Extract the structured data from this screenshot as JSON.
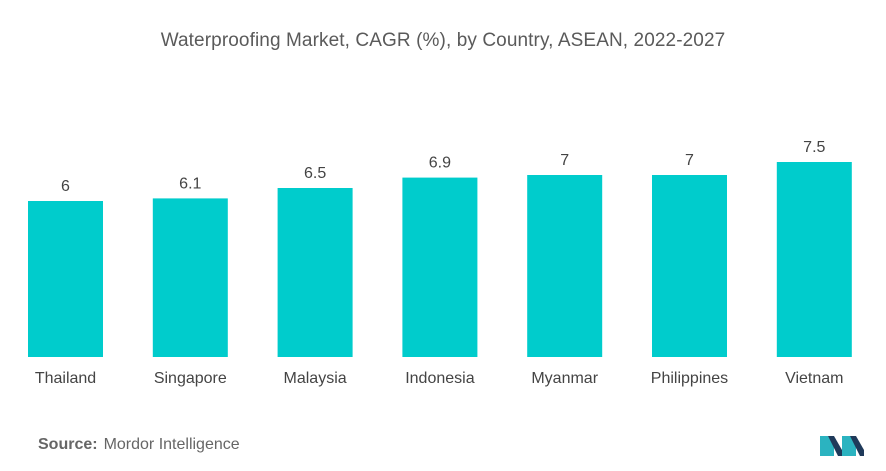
{
  "chart_data": {
    "type": "bar",
    "title": "Waterproofing Market, CAGR (%), by Country, ASEAN, 2022-2027",
    "categories": [
      "Thailand",
      "Singapore",
      "Malaysia",
      "Indonesia",
      "Myanmar",
      "Philippines",
      "Vietnam"
    ],
    "values": [
      6,
      6.1,
      6.5,
      6.9,
      7,
      7,
      7.5
    ],
    "data_labels": [
      "6",
      "6.1",
      "6.5",
      "6.9",
      "7",
      "7",
      "7.5"
    ],
    "xlabel": "",
    "ylabel": "",
    "ylim": [
      0,
      7.5
    ],
    "grid": false,
    "legend": "none",
    "bar_color": "#00CCCC"
  },
  "source": {
    "label": "Source:",
    "text": "Mordor Intelligence"
  },
  "logo": {
    "icon": "mordor-intelligence-logo-icon",
    "colors": [
      "#1f3a5a",
      "#2bb3c0"
    ]
  }
}
